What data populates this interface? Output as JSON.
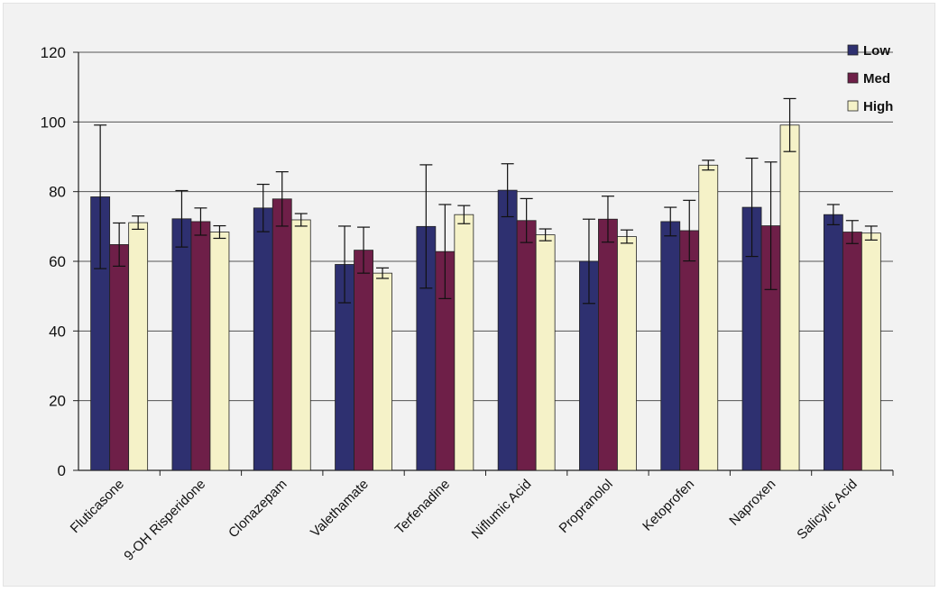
{
  "chart_data": {
    "type": "bar",
    "title": "",
    "xlabel": "",
    "ylabel": "",
    "ylim": [
      0,
      120
    ],
    "yticks": [
      0,
      20,
      40,
      60,
      80,
      100,
      120
    ],
    "grid": true,
    "legend_position": "top-right",
    "categories": [
      "Fluticasone",
      "9-OH Risperidone",
      "Clonazepam",
      "Valethamate",
      "Terfenadine",
      "Niflumic Acid",
      "Propranolol",
      "Ketoprofen",
      "Naproxen",
      "Salicylic Acid"
    ],
    "series": [
      {
        "name": "Low",
        "color": "#2e3070",
        "values": [
          78.5,
          72.2,
          75.3,
          59.1,
          70,
          80.4,
          60,
          71.4,
          75.5,
          73.4
        ],
        "errors": [
          20.6,
          8.1,
          6.8,
          11,
          17.7,
          7.6,
          12.1,
          4.1,
          14.1,
          2.9
        ]
      },
      {
        "name": "Med",
        "color": "#6e1f48",
        "values": [
          64.8,
          71.4,
          77.9,
          63.2,
          62.8,
          71.7,
          72.1,
          68.8,
          70.2,
          68.4
        ],
        "errors": [
          6.2,
          3.9,
          7.8,
          6.6,
          13.5,
          6.3,
          6.6,
          8.7,
          18.3,
          3.3
        ]
      },
      {
        "name": "High",
        "color": "#f5f2c8",
        "values": [
          71.1,
          68.4,
          71.9,
          56.6,
          73.4,
          67.6,
          67.1,
          87.6,
          99.1,
          68.1
        ],
        "errors": [
          1.9,
          1.8,
          1.8,
          1.5,
          2.6,
          1.7,
          1.9,
          1.4,
          7.6,
          2
        ]
      }
    ]
  }
}
